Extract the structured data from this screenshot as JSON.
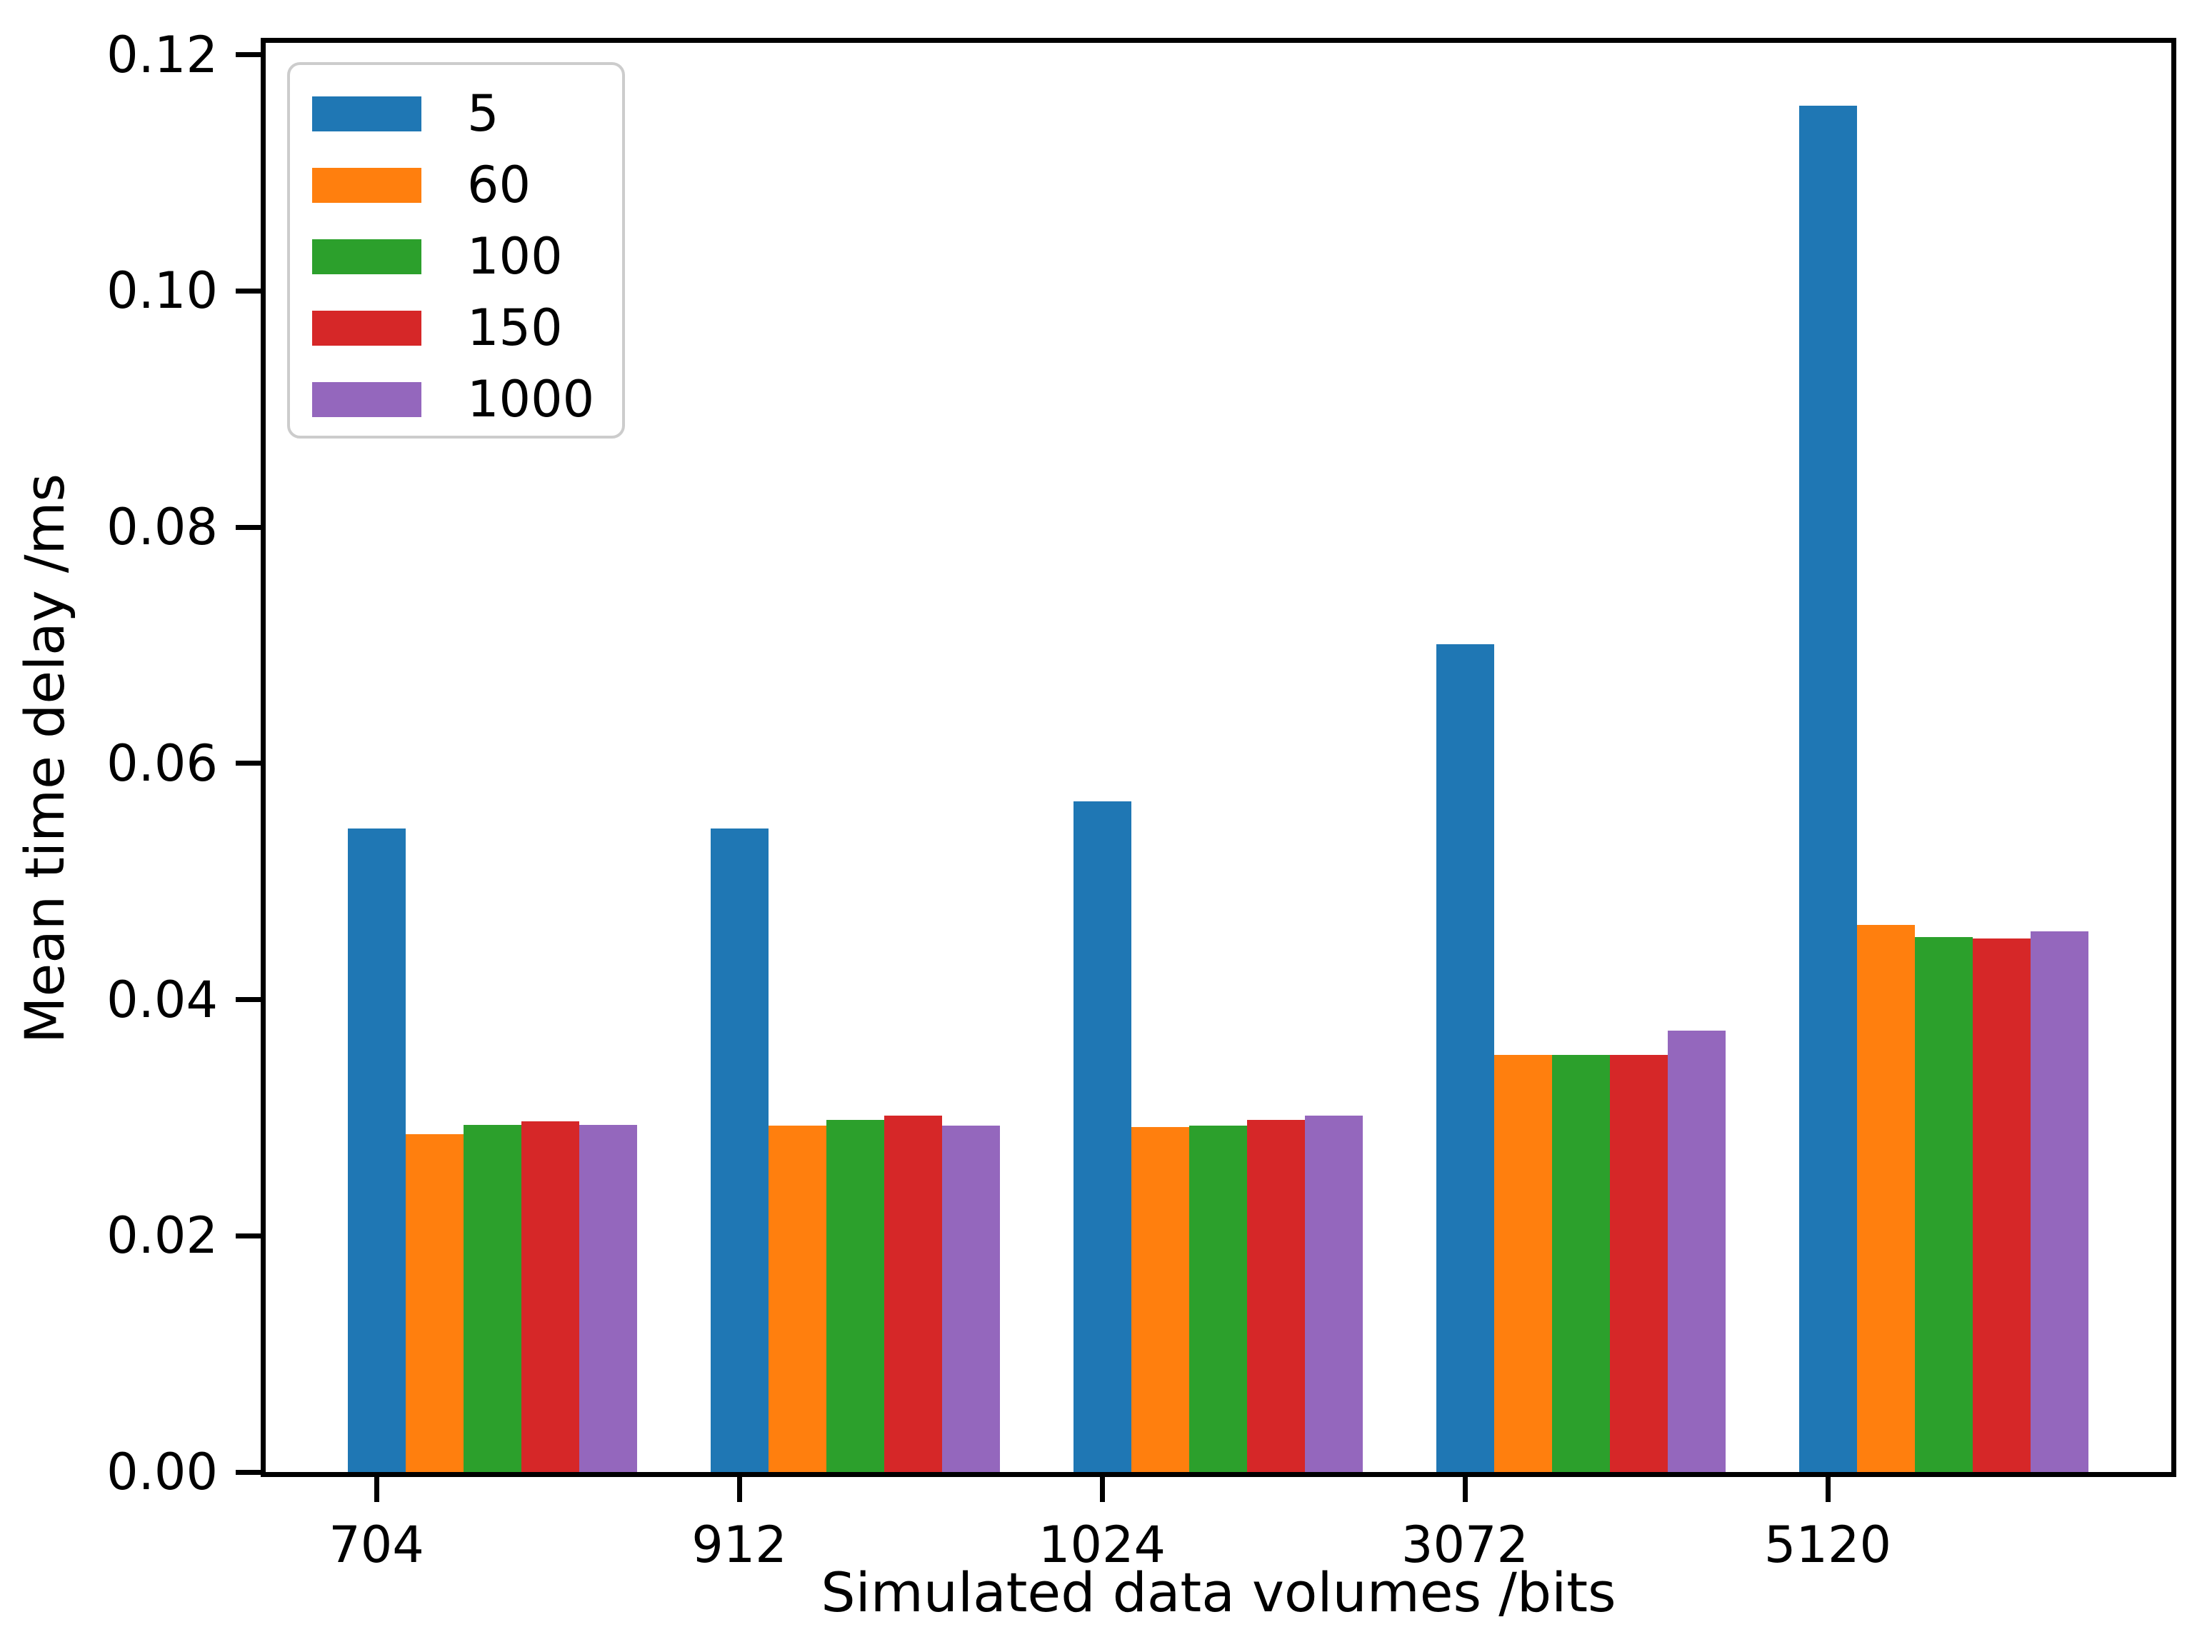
{
  "chart_data": {
    "type": "bar",
    "title": "",
    "xlabel": "Simulated data volumes /bits",
    "ylabel": "Mean time delay /ms",
    "categories": [
      "704",
      "912",
      "1024",
      "3072",
      "5120"
    ],
    "series": [
      {
        "name": "5",
        "color": "#1f77b4",
        "values": [
          0.0545,
          0.0545,
          0.0568,
          0.0701,
          0.1157
        ]
      },
      {
        "name": "60",
        "color": "#ff7f0e",
        "values": [
          0.0286,
          0.0293,
          0.0292,
          0.0353,
          0.0463
        ]
      },
      {
        "name": "100",
        "color": "#2ca02c",
        "values": [
          0.0294,
          0.0298,
          0.0293,
          0.0353,
          0.0453
        ]
      },
      {
        "name": "150",
        "color": "#d62728",
        "values": [
          0.0297,
          0.0302,
          0.0298,
          0.0353,
          0.0452
        ]
      },
      {
        "name": "1000",
        "color": "#9467bd",
        "values": [
          0.0294,
          0.0293,
          0.0302,
          0.0374,
          0.0458
        ]
      }
    ],
    "ylim": [
      0,
      0.121
    ],
    "yticks": [
      0.0,
      0.02,
      0.04,
      0.06,
      0.08,
      0.1,
      0.12
    ],
    "ytick_labels": [
      "0.00",
      "0.02",
      "0.04",
      "0.06",
      "0.08",
      "0.10",
      "0.12"
    ],
    "legend_position": "upper left",
    "legend_entries": [
      "5",
      "60",
      "100",
      "150",
      "1000"
    ],
    "grid": false,
    "axis_color": "#000000",
    "background_color": "#ffffff"
  }
}
